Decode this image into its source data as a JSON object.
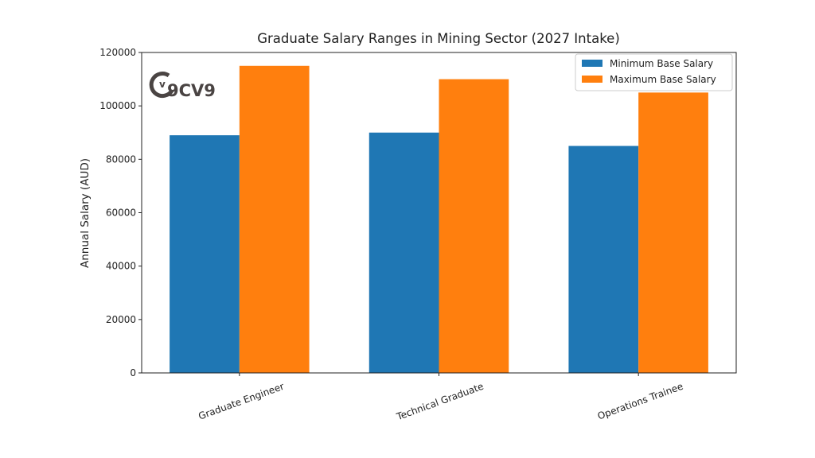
{
  "chart_data": {
    "type": "bar",
    "title": "Graduate Salary Ranges in Mining Sector (2027 Intake)",
    "xlabel": "",
    "ylabel": "Annual Salary (AUD)",
    "categories": [
      "Graduate Engineer",
      "Technical Graduate",
      "Operations Trainee"
    ],
    "series": [
      {
        "name": "Minimum Base Salary",
        "values": [
          89000,
          90000,
          85000
        ],
        "color": "#1f77b4"
      },
      {
        "name": "Maximum Base Salary",
        "values": [
          115000,
          110000,
          105000
        ],
        "color": "#ff7f0e"
      }
    ],
    "ylim": [
      0,
      120000
    ],
    "yticks": [
      0,
      20000,
      40000,
      60000,
      80000,
      100000,
      120000
    ],
    "grid": false,
    "legend": "top-right",
    "xtick_rotation": 20
  },
  "logo": {
    "text": "9CV9"
  }
}
